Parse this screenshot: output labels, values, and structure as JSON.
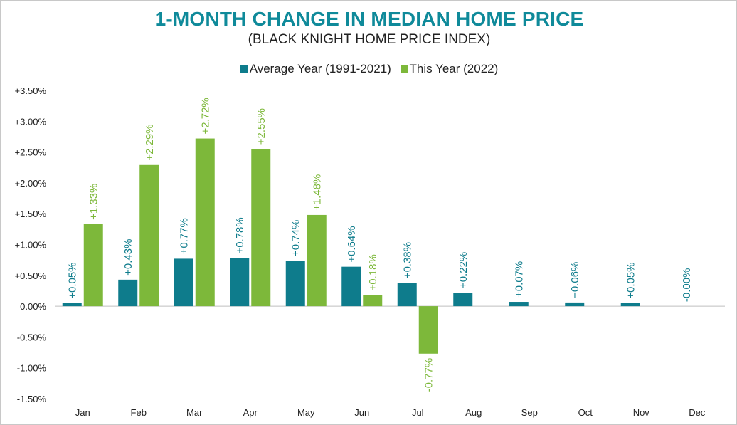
{
  "title": "1-MONTH CHANGE IN MEDIAN HOME PRICE",
  "subtitle": "(BLACK KNIGHT HOME PRICE INDEX)",
  "colors": {
    "average": "#0e7c8c",
    "this_year": "#7db83a",
    "title": "#0f8a9a",
    "axis": "#bfbfbf"
  },
  "chart_data": {
    "type": "bar",
    "title": "1-MONTH CHANGE IN MEDIAN HOME PRICE",
    "subtitle": "(BLACK KNIGHT HOME PRICE INDEX)",
    "xlabel": "",
    "ylabel": "",
    "categories": [
      "Jan",
      "Feb",
      "Mar",
      "Apr",
      "May",
      "Jun",
      "Jul",
      "Aug",
      "Sep",
      "Oct",
      "Nov",
      "Dec"
    ],
    "ylim": [
      -1.5,
      3.5
    ],
    "yticks": [
      -1.5,
      -1.0,
      -0.5,
      0.0,
      0.5,
      1.0,
      1.5,
      2.0,
      2.5,
      3.0,
      3.5
    ],
    "ytick_labels": [
      "-1.50%",
      "-1.00%",
      "-0.50%",
      "0.00%",
      "+0.50%",
      "+1.00%",
      "+1.50%",
      "+2.00%",
      "+2.50%",
      "+3.00%",
      "+3.50%"
    ],
    "grid": false,
    "legend_position": "top-center",
    "series": [
      {
        "name": "Average Year (1991-2021)",
        "color": "#0e7c8c",
        "values": [
          0.05,
          0.43,
          0.77,
          0.78,
          0.74,
          0.64,
          0.38,
          0.22,
          0.07,
          0.06,
          0.05,
          -0.0
        ],
        "labels": [
          "+0.05%",
          "+0.43%",
          "+0.77%",
          "+0.78%",
          "+0.74%",
          "+0.64%",
          "+0.38%",
          "+0.22%",
          "+0.07%",
          "+0.06%",
          "+0.05%",
          "-0.00%"
        ]
      },
      {
        "name": "This Year (2022)",
        "color": "#7db83a",
        "values": [
          1.33,
          2.29,
          2.72,
          2.55,
          1.48,
          0.18,
          -0.77,
          null,
          null,
          null,
          null,
          null
        ],
        "labels": [
          "+1.33%",
          "+2.29%",
          "+2.72%",
          "+2.55%",
          "+1.48%",
          "+0.18%",
          "-0.77%",
          null,
          null,
          null,
          null,
          null
        ]
      }
    ]
  }
}
